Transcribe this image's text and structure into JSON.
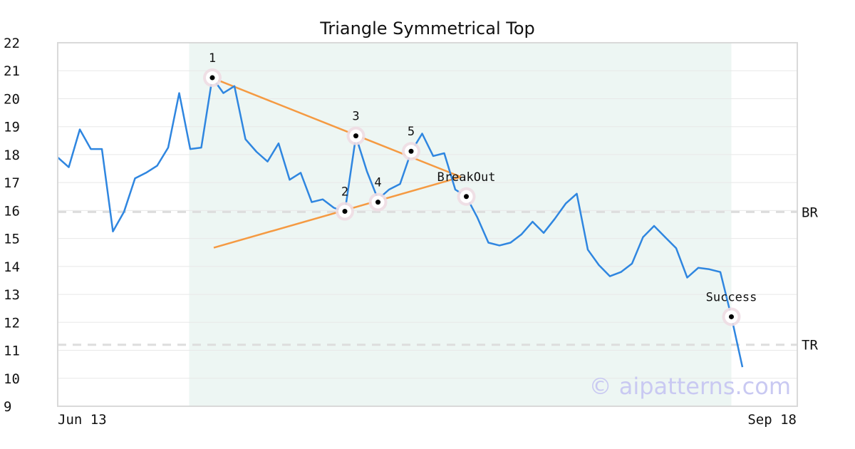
{
  "chart_data": {
    "type": "line",
    "title": "Triangle Symmetrical Top",
    "xlabel": "",
    "ylabel": "",
    "ylim": [
      9,
      22
    ],
    "y_ticks": [
      22,
      21,
      20,
      19,
      18,
      17,
      16,
      15,
      14,
      13,
      12,
      11,
      10,
      9
    ],
    "x_tick_labels": [
      "Jun 13",
      "Sep 18"
    ],
    "grid": "horizontal",
    "colors": {
      "price": "#2f86e0",
      "trendlines": "#f59a42",
      "pattern_band": "#edf6f3",
      "level": "#dddddd",
      "marker_halo": "#eedde3",
      "watermark": "#c9c9f2"
    },
    "series": [
      {
        "values": [
          17.9,
          17.55,
          18.9,
          18.2,
          18.2,
          15.25,
          15.95,
          17.15,
          17.35,
          17.6,
          18.25,
          20.2,
          18.2,
          18.25,
          20.75,
          20.2,
          20.45,
          18.55,
          18.1,
          17.75,
          18.4,
          17.1,
          17.35,
          16.3,
          16.4,
          16.1,
          15.95,
          18.65,
          17.4,
          16.4,
          16.75,
          16.95,
          18.1,
          18.75,
          17.95,
          18.05,
          16.75,
          16.5,
          15.75,
          14.85,
          14.75,
          14.85,
          15.15,
          15.6,
          15.2,
          15.7,
          16.25,
          16.6,
          14.6,
          14.05,
          13.65,
          13.8,
          14.1,
          15.05,
          15.45,
          15.05,
          14.65,
          13.6,
          13.95,
          13.9,
          13.8,
          12.2,
          10.4
        ]
      }
    ],
    "pattern_region": {
      "start_index": 12,
      "end_index": 61
    },
    "trendlines": [
      {
        "from": {
          "index": 14,
          "value": 20.72
        },
        "to": {
          "index": 36,
          "value": 17.2
        }
      },
      {
        "from": {
          "index": 14,
          "value": 14.67
        },
        "to": {
          "index": 36,
          "value": 17.2
        }
      }
    ],
    "levels": [
      {
        "label": "BR",
        "value": 15.95
      },
      {
        "label": "TR",
        "value": 11.2
      }
    ],
    "markers": [
      {
        "label": "1",
        "index": 14,
        "value": 20.75
      },
      {
        "label": "2",
        "index": 26,
        "value": 15.97
      },
      {
        "label": "3",
        "index": 27,
        "value": 18.67
      },
      {
        "label": "4",
        "index": 29,
        "value": 16.3
      },
      {
        "label": "5",
        "index": 32,
        "value": 18.12
      },
      {
        "label": "BreakOut",
        "index": 37,
        "value": 16.5
      },
      {
        "label": "Success",
        "index": 61,
        "value": 12.2
      }
    ],
    "watermark": "© aipatterns.com"
  }
}
